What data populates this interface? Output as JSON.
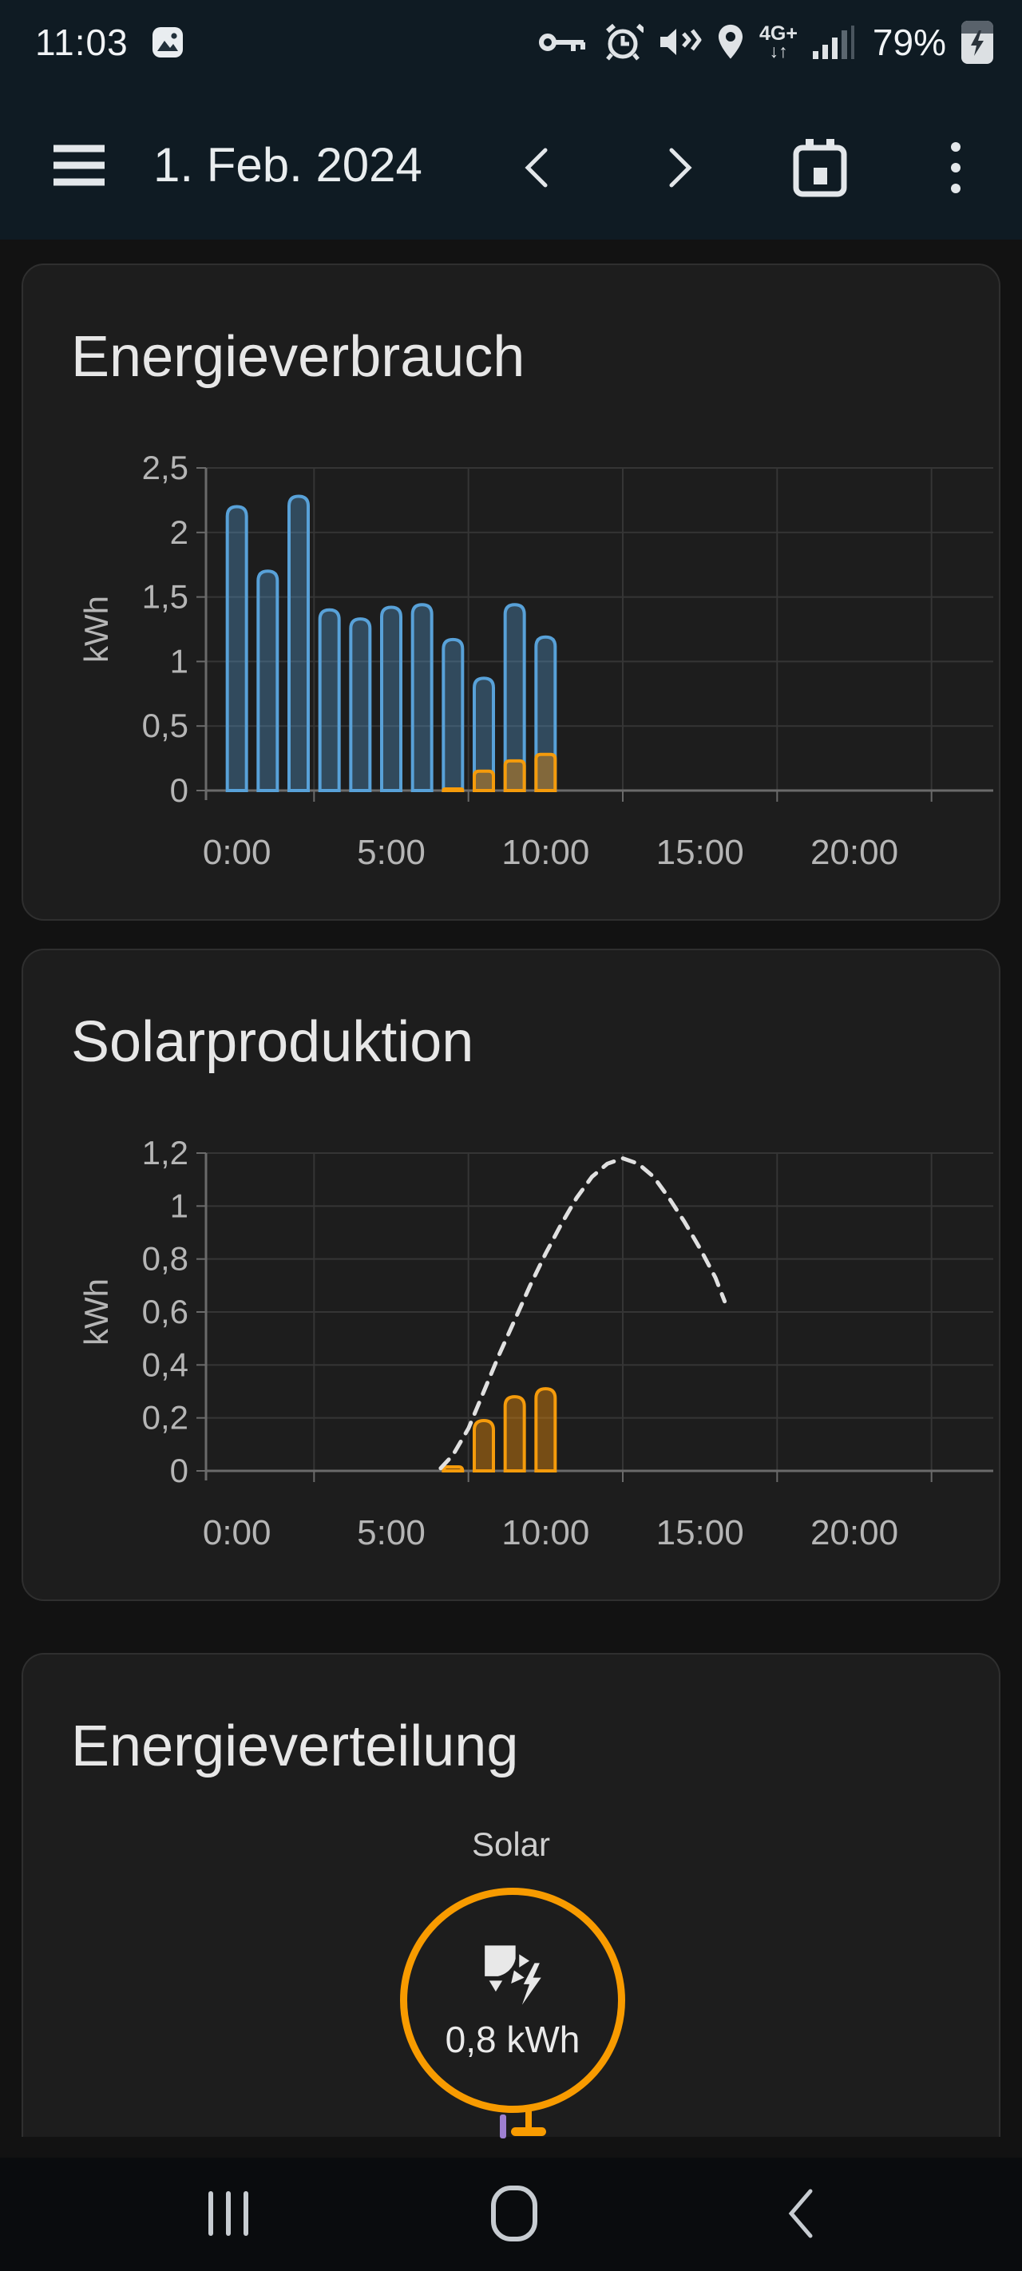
{
  "colors": {
    "solar_orange": "#f89b00",
    "consumption_blue": "#58a1d8",
    "return_purple": "#9d7fd1",
    "header_bg": "#0f1b23",
    "card_bg": "#1d1d1d"
  },
  "status_bar": {
    "time": "11:03",
    "battery": "79%",
    "icons": [
      "screenshot",
      "vpn-key",
      "alarm",
      "mute-vibrate",
      "location",
      "4g-plus-updown",
      "signal-strength",
      "battery-charging"
    ]
  },
  "header": {
    "date": "1. Feb. 2024",
    "icons": [
      "menu",
      "chevron-left",
      "chevron-right",
      "calendar",
      "more-vertical"
    ]
  },
  "cards": [
    {
      "title": "Energieverbrauch"
    },
    {
      "title": "Solarproduktion"
    },
    {
      "title": "Energieverteilung",
      "node_label": "Solar",
      "node_value": "0,8 kWh"
    }
  ],
  "nav_bar": {
    "icons": [
      "recents",
      "home",
      "back"
    ]
  },
  "chart_data": [
    {
      "type": "bar",
      "title": "Energieverbrauch",
      "ylabel": "kWh",
      "ylim": [
        0,
        2.5
      ],
      "x_range": [
        -1,
        24.5
      ],
      "xtick_hours": [
        0,
        5,
        10,
        15,
        20
      ],
      "xtick_labels": [
        "0:00",
        "5:00",
        "10:00",
        "15:00",
        "20:00"
      ],
      "grid_hours": [
        2.5,
        7.5,
        12.5,
        17.5,
        22.5
      ],
      "ytick_values": [
        0,
        0.5,
        1,
        1.5,
        2,
        2.5
      ],
      "ytick_labels": [
        "0",
        "0,5",
        "1",
        "1,5",
        "2",
        "2,5"
      ],
      "colors": {
        "grid": "#353535",
        "axis": "#6a6a6a",
        "tick_text": "#b5b5b5"
      },
      "bar_series": [
        {
          "name": "consumption",
          "color": "#58a1d8",
          "fill": "rgba(88,161,216,0.35)",
          "corner_radius": 12,
          "hours": [
            0,
            1,
            2,
            3,
            4,
            5,
            6,
            7,
            8,
            9,
            10
          ],
          "values": [
            2.2,
            1.7,
            2.28,
            1.4,
            1.33,
            1.42,
            1.44,
            1.17,
            0.87,
            1.44,
            1.19
          ]
        },
        {
          "name": "solar-consumed",
          "color": "#f59b0b",
          "fill": "rgba(243,146,12,0.42)",
          "corner_radius": 6,
          "hours": [
            7,
            8,
            9,
            10
          ],
          "values": [
            0.012,
            0.15,
            0.23,
            0.28
          ]
        }
      ]
    },
    {
      "type": "bar+line",
      "title": "Solarproduktion",
      "ylabel": "kWh",
      "ylim": [
        0,
        1.2
      ],
      "x_range": [
        -1,
        24.5
      ],
      "xtick_hours": [
        0,
        5,
        10,
        15,
        20
      ],
      "xtick_labels": [
        "0:00",
        "5:00",
        "10:00",
        "15:00",
        "20:00"
      ],
      "grid_hours": [
        2.5,
        7.5,
        12.5,
        17.5,
        22.5
      ],
      "ytick_values": [
        0,
        0.2,
        0.4,
        0.6,
        0.8,
        1,
        1.2
      ],
      "ytick_labels": [
        "0",
        "0,2",
        "0,4",
        "0,6",
        "0,8",
        "1",
        "1,2"
      ],
      "colors": {
        "grid": "#353535",
        "axis": "#6a6a6a",
        "tick_text": "#b5b5b5"
      },
      "bar_series": [
        {
          "name": "solar-production",
          "color": "#f59b0b",
          "fill": "rgba(243,146,12,0.42)",
          "corner_radius": 12,
          "hours": [
            7,
            8,
            9,
            10
          ],
          "values": [
            0.015,
            0.19,
            0.28,
            0.31
          ]
        }
      ],
      "forecast": {
        "name": "solar-forecast",
        "color": "#e0e0e0",
        "points": [
          [
            6.6,
            0.01
          ],
          [
            7,
            0.06
          ],
          [
            7.5,
            0.16
          ],
          [
            8,
            0.3
          ],
          [
            8.5,
            0.44
          ],
          [
            9,
            0.57
          ],
          [
            9.5,
            0.7
          ],
          [
            10,
            0.82
          ],
          [
            10.5,
            0.93
          ],
          [
            11,
            1.03
          ],
          [
            11.5,
            1.11
          ],
          [
            12,
            1.16
          ],
          [
            12.5,
            1.18
          ],
          [
            13,
            1.16
          ],
          [
            13.5,
            1.11
          ],
          [
            14,
            1.03
          ],
          [
            14.5,
            0.94
          ],
          [
            15,
            0.84
          ],
          [
            15.5,
            0.73
          ],
          [
            15.8,
            0.64
          ]
        ]
      }
    }
  ]
}
